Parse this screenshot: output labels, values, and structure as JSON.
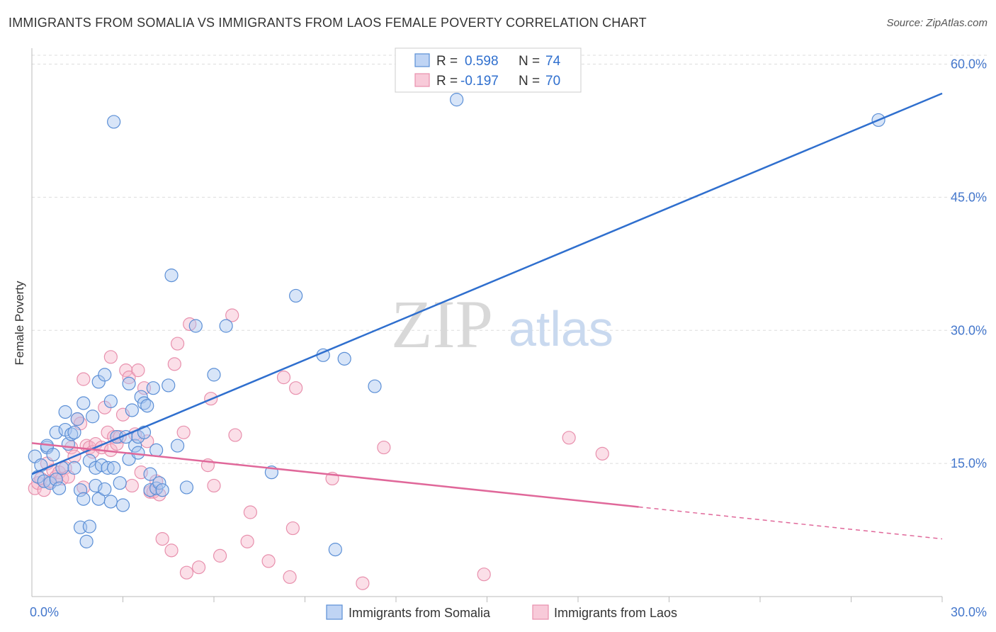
{
  "title": "IMMIGRANTS FROM SOMALIA VS IMMIGRANTS FROM LAOS FEMALE POVERTY CORRELATION CHART",
  "source": "Source: ZipAtlas.com",
  "watermark": {
    "zip": "ZIP",
    "atlas": "atlas"
  },
  "colors": {
    "somalia_fill": "#a9c6f0",
    "somalia_stroke": "#5b8fd6",
    "somalia_line": "#2f6fce",
    "laos_fill": "#f6b8cc",
    "laos_stroke": "#e890ad",
    "laos_line": "#e0689a",
    "grid": "#dddddd",
    "tick_label": "#4477cc"
  },
  "legend": {
    "rows": [
      {
        "r_label": "R =",
        "r_value": "0.598",
        "n_label": "N =",
        "n_value": "74"
      },
      {
        "r_label": "R =",
        "r_value": "-0.197",
        "n_label": "N =",
        "n_value": "70"
      }
    ]
  },
  "chart_data": {
    "type": "scatter",
    "title": "IMMIGRANTS FROM SOMALIA VS IMMIGRANTS FROM LAOS FEMALE POVERTY CORRELATION CHART",
    "xlabel": "",
    "ylabel": "Female Poverty",
    "xlim": [
      0,
      30
    ],
    "ylim": [
      0,
      61
    ],
    "x_tick_labels": [
      "0.0%",
      "30.0%"
    ],
    "y_ticks": [
      15,
      30,
      45,
      60
    ],
    "y_tick_labels": [
      "15.0%",
      "30.0%",
      "45.0%",
      "60.0%"
    ],
    "grid": true,
    "series": [
      {
        "name": "Immigrants from Somalia",
        "r": 0.598,
        "n": 74,
        "trend": {
          "x": [
            0,
            30
          ],
          "y": [
            13.8,
            56.7
          ]
        },
        "points": [
          [
            0.1,
            15.8
          ],
          [
            0.2,
            13.5
          ],
          [
            0.3,
            14.8
          ],
          [
            0.4,
            13.0
          ],
          [
            0.5,
            16.8
          ],
          [
            0.5,
            17.0
          ],
          [
            0.6,
            12.8
          ],
          [
            0.7,
            16.0
          ],
          [
            0.8,
            18.5
          ],
          [
            0.8,
            13.2
          ],
          [
            0.9,
            12.2
          ],
          [
            1.0,
            14.5
          ],
          [
            1.1,
            18.8
          ],
          [
            1.1,
            20.8
          ],
          [
            1.2,
            17.2
          ],
          [
            1.3,
            18.3
          ],
          [
            1.4,
            18.5
          ],
          [
            1.4,
            14.5
          ],
          [
            1.5,
            20.0
          ],
          [
            1.6,
            12.0
          ],
          [
            1.6,
            7.8
          ],
          [
            1.7,
            11.0
          ],
          [
            1.7,
            21.8
          ],
          [
            1.8,
            6.2
          ],
          [
            1.9,
            15.3
          ],
          [
            1.9,
            7.9
          ],
          [
            2.0,
            20.3
          ],
          [
            2.1,
            12.5
          ],
          [
            2.1,
            14.5
          ],
          [
            2.2,
            11.0
          ],
          [
            2.2,
            24.2
          ],
          [
            2.3,
            14.8
          ],
          [
            2.4,
            25.0
          ],
          [
            2.4,
            12.1
          ],
          [
            2.5,
            14.5
          ],
          [
            2.6,
            10.7
          ],
          [
            2.6,
            22.0
          ],
          [
            2.7,
            14.5
          ],
          [
            2.7,
            53.5
          ],
          [
            2.8,
            18.0
          ],
          [
            2.9,
            12.8
          ],
          [
            3.0,
            10.3
          ],
          [
            3.1,
            18.0
          ],
          [
            3.2,
            24.0
          ],
          [
            3.2,
            15.5
          ],
          [
            3.3,
            21.0
          ],
          [
            3.4,
            17.0
          ],
          [
            3.5,
            18.0
          ],
          [
            3.5,
            16.2
          ],
          [
            3.6,
            22.5
          ],
          [
            3.7,
            21.8
          ],
          [
            3.7,
            18.5
          ],
          [
            3.8,
            21.5
          ],
          [
            3.9,
            13.8
          ],
          [
            3.9,
            12.0
          ],
          [
            4.0,
            23.5
          ],
          [
            4.1,
            12.2
          ],
          [
            4.1,
            16.5
          ],
          [
            4.2,
            12.8
          ],
          [
            4.3,
            12.0
          ],
          [
            4.5,
            23.8
          ],
          [
            4.6,
            36.2
          ],
          [
            4.8,
            17.0
          ],
          [
            5.1,
            12.3
          ],
          [
            5.4,
            30.5
          ],
          [
            6.0,
            25.0
          ],
          [
            6.4,
            30.5
          ],
          [
            7.9,
            14.0
          ],
          [
            8.7,
            33.9
          ],
          [
            9.6,
            27.2
          ],
          [
            10.3,
            26.8
          ],
          [
            10.0,
            5.3
          ],
          [
            11.3,
            23.7
          ],
          [
            14.0,
            56.0
          ],
          [
            27.9,
            53.7
          ]
        ]
      },
      {
        "name": "Immigrants from Laos",
        "r": -0.197,
        "n": 70,
        "trend": {
          "x": [
            0,
            20
          ],
          "y": [
            17.3,
            10.1
          ]
        },
        "trend_dashed": {
          "x": [
            20,
            30
          ],
          "y": [
            10.1,
            6.5
          ]
        },
        "points": [
          [
            0.1,
            12.2
          ],
          [
            0.2,
            12.8
          ],
          [
            0.3,
            13.3
          ],
          [
            0.4,
            12.0
          ],
          [
            0.5,
            15.0
          ],
          [
            0.6,
            13.0
          ],
          [
            0.7,
            14.2
          ],
          [
            0.8,
            13.5
          ],
          [
            0.9,
            14.0
          ],
          [
            1.0,
            13.3
          ],
          [
            1.1,
            14.5
          ],
          [
            1.2,
            13.5
          ],
          [
            1.3,
            16.8
          ],
          [
            1.4,
            15.8
          ],
          [
            1.5,
            20.0
          ],
          [
            1.6,
            19.5
          ],
          [
            1.7,
            12.3
          ],
          [
            1.7,
            24.5
          ],
          [
            1.8,
            17.0
          ],
          [
            1.9,
            16.8
          ],
          [
            2.0,
            16.3
          ],
          [
            2.1,
            17.2
          ],
          [
            2.3,
            16.8
          ],
          [
            2.4,
            21.3
          ],
          [
            2.5,
            18.5
          ],
          [
            2.6,
            16.5
          ],
          [
            2.6,
            27.0
          ],
          [
            2.7,
            18.0
          ],
          [
            2.8,
            17.2
          ],
          [
            2.9,
            18.0
          ],
          [
            3.0,
            20.5
          ],
          [
            3.1,
            25.5
          ],
          [
            3.2,
            24.7
          ],
          [
            3.3,
            12.5
          ],
          [
            3.4,
            18.3
          ],
          [
            3.5,
            25.5
          ],
          [
            3.6,
            14.0
          ],
          [
            3.7,
            23.5
          ],
          [
            3.8,
            17.5
          ],
          [
            3.9,
            11.8
          ],
          [
            4.0,
            11.8
          ],
          [
            4.1,
            13.0
          ],
          [
            4.2,
            11.5
          ],
          [
            4.3,
            6.5
          ],
          [
            4.6,
            5.2
          ],
          [
            4.7,
            26.2
          ],
          [
            4.8,
            28.5
          ],
          [
            5.0,
            18.5
          ],
          [
            5.1,
            2.7
          ],
          [
            5.2,
            30.7
          ],
          [
            5.5,
            3.3
          ],
          [
            5.8,
            14.8
          ],
          [
            5.9,
            22.3
          ],
          [
            6.0,
            12.5
          ],
          [
            6.2,
            4.6
          ],
          [
            6.6,
            31.7
          ],
          [
            6.7,
            18.2
          ],
          [
            7.1,
            6.2
          ],
          [
            7.2,
            9.5
          ],
          [
            7.8,
            4.0
          ],
          [
            8.3,
            24.7
          ],
          [
            8.5,
            2.2
          ],
          [
            8.6,
            7.7
          ],
          [
            8.7,
            23.5
          ],
          [
            9.9,
            13.3
          ],
          [
            10.9,
            1.5
          ],
          [
            11.6,
            16.8
          ],
          [
            14.9,
            2.5
          ],
          [
            17.7,
            17.9
          ],
          [
            18.8,
            16.1
          ]
        ]
      }
    ]
  }
}
